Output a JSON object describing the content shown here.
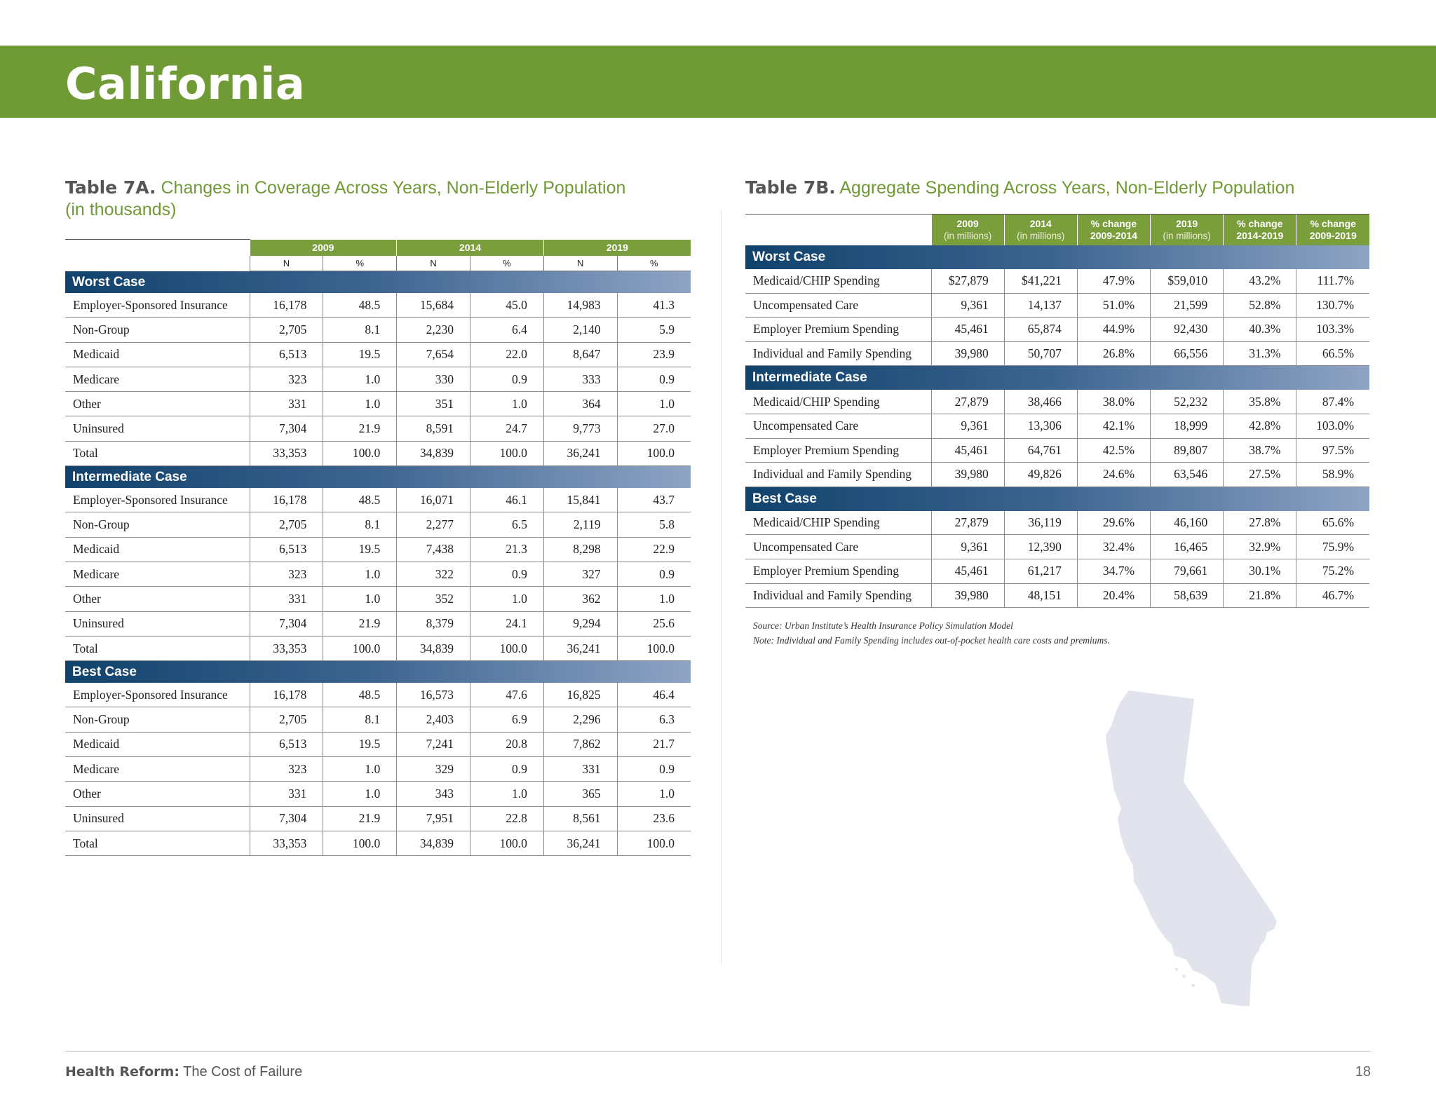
{
  "header": {
    "title": "California"
  },
  "table7a": {
    "label": "Table 7A.",
    "title": "Changes in Coverage Across Years, Non-Elderly Population (in thousands)",
    "years": [
      "2009",
      "2014",
      "2019"
    ],
    "subheaders": [
      "N",
      "%",
      "N",
      "%",
      "N",
      "%"
    ],
    "sections": [
      {
        "name": "Worst Case",
        "rows": [
          {
            "label": "Employer-Sponsored Insurance",
            "values": [
              "16,178",
              "48.5",
              "15,684",
              "45.0",
              "14,983",
              "41.3"
            ]
          },
          {
            "label": "Non-Group",
            "values": [
              "2,705",
              "8.1",
              "2,230",
              "6.4",
              "2,140",
              "5.9"
            ]
          },
          {
            "label": "Medicaid",
            "values": [
              "6,513",
              "19.5",
              "7,654",
              "22.0",
              "8,647",
              "23.9"
            ]
          },
          {
            "label": "Medicare",
            "values": [
              "323",
              "1.0",
              "330",
              "0.9",
              "333",
              "0.9"
            ]
          },
          {
            "label": "Other",
            "values": [
              "331",
              "1.0",
              "351",
              "1.0",
              "364",
              "1.0"
            ]
          },
          {
            "label": "Uninsured",
            "values": [
              "7,304",
              "21.9",
              "8,591",
              "24.7",
              "9,773",
              "27.0"
            ]
          },
          {
            "label": "Total",
            "values": [
              "33,353",
              "100.0",
              "34,839",
              "100.0",
              "36,241",
              "100.0"
            ]
          }
        ]
      },
      {
        "name": "Intermediate Case",
        "rows": [
          {
            "label": "Employer-Sponsored Insurance",
            "values": [
              "16,178",
              "48.5",
              "16,071",
              "46.1",
              "15,841",
              "43.7"
            ]
          },
          {
            "label": "Non-Group",
            "values": [
              "2,705",
              "8.1",
              "2,277",
              "6.5",
              "2,119",
              "5.8"
            ]
          },
          {
            "label": "Medicaid",
            "values": [
              "6,513",
              "19.5",
              "7,438",
              "21.3",
              "8,298",
              "22.9"
            ]
          },
          {
            "label": "Medicare",
            "values": [
              "323",
              "1.0",
              "322",
              "0.9",
              "327",
              "0.9"
            ]
          },
          {
            "label": "Other",
            "values": [
              "331",
              "1.0",
              "352",
              "1.0",
              "362",
              "1.0"
            ]
          },
          {
            "label": "Uninsured",
            "values": [
              "7,304",
              "21.9",
              "8,379",
              "24.1",
              "9,294",
              "25.6"
            ]
          },
          {
            "label": "Total",
            "values": [
              "33,353",
              "100.0",
              "34,839",
              "100.0",
              "36,241",
              "100.0"
            ]
          }
        ]
      },
      {
        "name": "Best Case",
        "rows": [
          {
            "label": "Employer-Sponsored Insurance",
            "values": [
              "16,178",
              "48.5",
              "16,573",
              "47.6",
              "16,825",
              "46.4"
            ]
          },
          {
            "label": "Non-Group",
            "values": [
              "2,705",
              "8.1",
              "2,403",
              "6.9",
              "2,296",
              "6.3"
            ]
          },
          {
            "label": "Medicaid",
            "values": [
              "6,513",
              "19.5",
              "7,241",
              "20.8",
              "7,862",
              "21.7"
            ]
          },
          {
            "label": "Medicare",
            "values": [
              "323",
              "1.0",
              "329",
              "0.9",
              "331",
              "0.9"
            ]
          },
          {
            "label": "Other",
            "values": [
              "331",
              "1.0",
              "343",
              "1.0",
              "365",
              "1.0"
            ]
          },
          {
            "label": "Uninsured",
            "values": [
              "7,304",
              "21.9",
              "7,951",
              "22.8",
              "8,561",
              "23.6"
            ]
          },
          {
            "label": "Total",
            "values": [
              "33,353",
              "100.0",
              "34,839",
              "100.0",
              "36,241",
              "100.0"
            ]
          }
        ]
      }
    ]
  },
  "table7b": {
    "label": "Table 7B.",
    "title": "Aggregate Spending Across Years, Non-Elderly Population",
    "columns": [
      {
        "line1": "2009",
        "line2": "(in millions)"
      },
      {
        "line1": "2014",
        "line2": "(in millions)"
      },
      {
        "line1": "% change",
        "line2": "2009-2014"
      },
      {
        "line1": "2019",
        "line2": "(in millions)"
      },
      {
        "line1": "% change",
        "line2": "2014-2019"
      },
      {
        "line1": "% change",
        "line2": "2009-2019"
      }
    ],
    "sections": [
      {
        "name": "Worst Case",
        "rows": [
          {
            "label": "Medicaid/CHIP Spending",
            "values": [
              "$27,879",
              "$41,221",
              "47.9%",
              "$59,010",
              "43.2%",
              "111.7%"
            ]
          },
          {
            "label": "Uncompensated Care",
            "values": [
              "9,361",
              "14,137",
              "51.0%",
              "21,599",
              "52.8%",
              "130.7%"
            ]
          },
          {
            "label": "Employer Premium Spending",
            "values": [
              "45,461",
              "65,874",
              "44.9%",
              "92,430",
              "40.3%",
              "103.3%"
            ]
          },
          {
            "label": "Individual and Family Spending",
            "values": [
              "39,980",
              "50,707",
              "26.8%",
              "66,556",
              "31.3%",
              "66.5%"
            ]
          }
        ]
      },
      {
        "name": "Intermediate Case",
        "rows": [
          {
            "label": "Medicaid/CHIP Spending",
            "values": [
              "27,879",
              "38,466",
              "38.0%",
              "52,232",
              "35.8%",
              "87.4%"
            ]
          },
          {
            "label": "Uncompensated Care",
            "values": [
              "9,361",
              "13,306",
              "42.1%",
              "18,999",
              "42.8%",
              "103.0%"
            ]
          },
          {
            "label": "Employer Premium Spending",
            "values": [
              "45,461",
              "64,761",
              "42.5%",
              "89,807",
              "38.7%",
              "97.5%"
            ]
          },
          {
            "label": "Individual and Family Spending",
            "values": [
              "39,980",
              "49,826",
              "24.6%",
              "63,546",
              "27.5%",
              "58.9%"
            ]
          }
        ]
      },
      {
        "name": "Best Case",
        "rows": [
          {
            "label": "Medicaid/CHIP Spending",
            "values": [
              "27,879",
              "36,119",
              "29.6%",
              "46,160",
              "27.8%",
              "65.6%"
            ]
          },
          {
            "label": "Uncompensated Care",
            "values": [
              "9,361",
              "12,390",
              "32.4%",
              "16,465",
              "32.9%",
              "75.9%"
            ]
          },
          {
            "label": "Employer Premium Spending",
            "values": [
              "45,461",
              "61,217",
              "34.7%",
              "79,661",
              "30.1%",
              "75.2%"
            ]
          },
          {
            "label": "Individual and Family Spending",
            "values": [
              "39,980",
              "48,151",
              "20.4%",
              "58,639",
              "21.8%",
              "46.7%"
            ]
          }
        ]
      }
    ],
    "source": "Source: Urban Institute’s Health Insurance Policy Simulation Model",
    "note": "Note: Individual and Family Spending includes out-of-pocket health care costs and premiums."
  },
  "footer": {
    "bold": "Health Reform:",
    "text": " The Cost of Failure",
    "page": "18"
  },
  "colors": {
    "banner": "#6f9a35",
    "header_green": "#7a9e3b",
    "case_blue": "#10426b",
    "map_fill": "#e1e4ec"
  },
  "icons": {
    "map": "california-state-map"
  }
}
